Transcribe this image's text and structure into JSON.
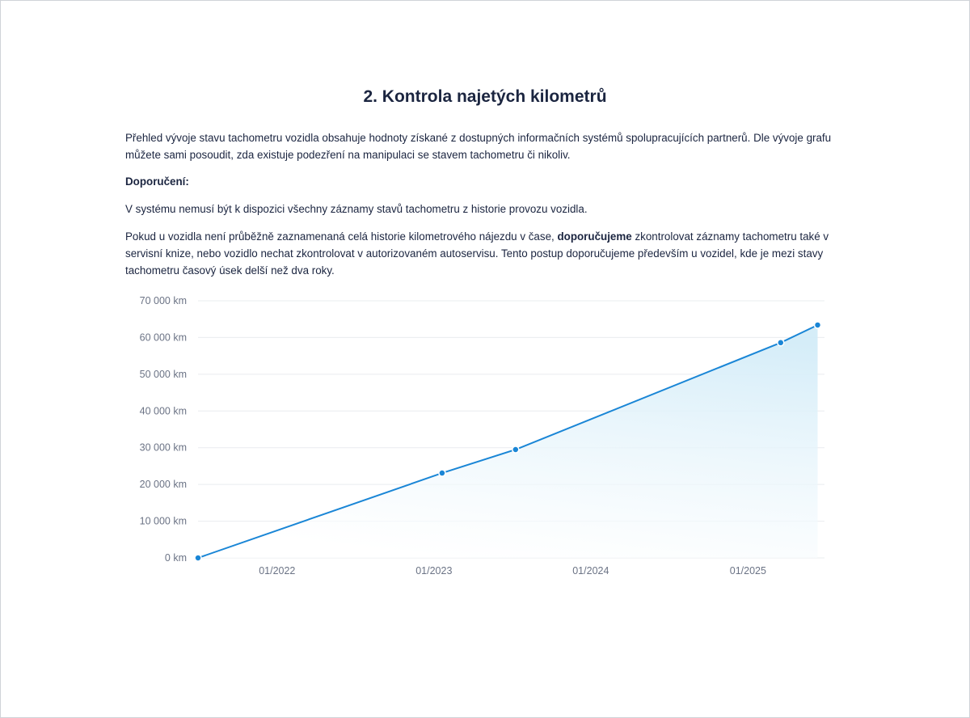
{
  "heading": "2. Kontrola najetých kilometrů",
  "paragraphs": {
    "intro": "Přehled vývoje stavu tachometru vozidla obsahuje hodnoty získané z dostupných informačních systémů spolupracujících partnerů. Dle vývoje grafu můžete sami posoudit, zda existuje podezření na manipulaci se stavem tachometru či nikoliv.",
    "recommendation_label": "Doporučení:",
    "note": "V systému nemusí být k dispozici všechny záznamy stavů tachometru z historie provozu vozidla.",
    "advice_before": "Pokud u vozidla není průběžně zaznamenaná celá historie kilometrového nájezdu v čase, ",
    "advice_bold": "doporučujeme",
    "advice_after": " zkontrolovat záznamy tachometru také v servisní knize, nebo vozidlo nechat zkontrolovat v autorizovaném autoservisu. Tento postup doporučujeme především u vozidel, kde je mezi stavy tachometru časový úsek delší než dva roky."
  },
  "chart_data": {
    "type": "area",
    "title": "",
    "xlabel": "",
    "ylabel": "",
    "x_type": "date",
    "xlim": [
      "2021-07-01",
      "2025-06-28"
    ],
    "ylim": [
      0,
      70000
    ],
    "y_ticks": [
      0,
      10000,
      20000,
      30000,
      40000,
      50000,
      60000,
      70000
    ],
    "y_tick_labels": [
      "0 km",
      "10 000 km",
      "20 000 km",
      "30 000 km",
      "40 000 km",
      "50 000 km",
      "60 000 km",
      "70 000 km"
    ],
    "x_ticks": [
      "2022-01-01",
      "2023-01-01",
      "2024-01-01",
      "2025-01-01"
    ],
    "x_tick_labels": [
      "01/2022",
      "01/2023",
      "01/2024",
      "01/2025"
    ],
    "grid": true,
    "legend": "none",
    "colors": {
      "line": "#1a86d6",
      "fill": "#d7eef9",
      "grid": "#e9ecef"
    },
    "series": [
      {
        "x": [
          "2021-07-01",
          "2023-01-20",
          "2023-07-10",
          "2025-03-18",
          "2025-06-12"
        ],
        "y": [
          0,
          23100,
          29500,
          58600,
          63400
        ]
      }
    ]
  }
}
